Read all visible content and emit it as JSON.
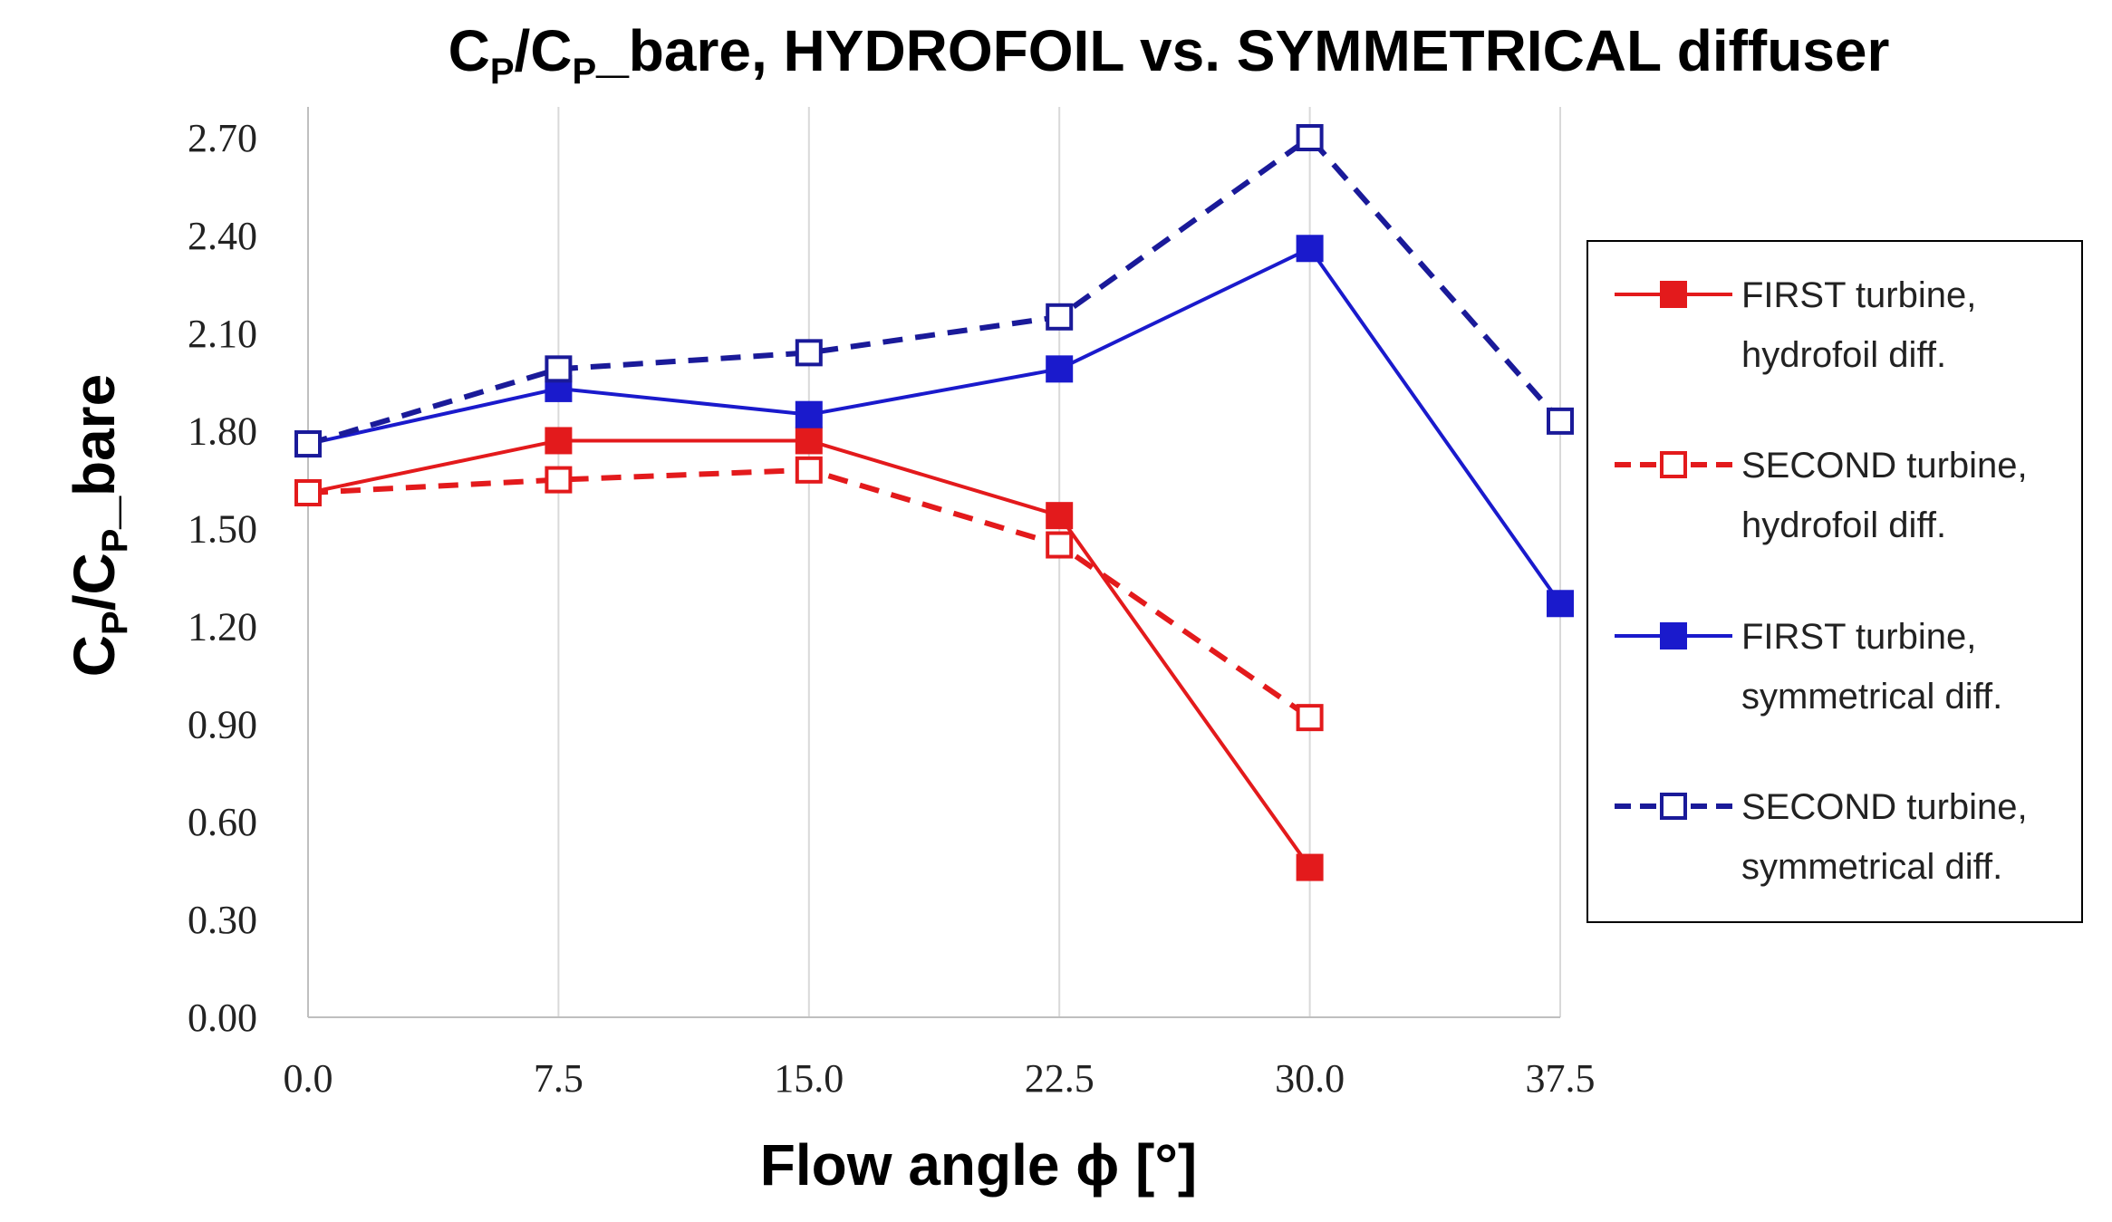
{
  "chart_data": {
    "type": "line",
    "title": "CP/CP_bare, HYDROFOIL vs. SYMMETRICAL diffuser",
    "title_parts": [
      "C",
      "P",
      "/C",
      "P",
      "_bare, HYDROFOIL vs. SYMMETRICAL diffuser"
    ],
    "xlabel": "Flow angle ϕ [°]",
    "ylabel": "CP/CP_bare",
    "ylabel_parts": [
      "C",
      "P",
      "/C",
      "P",
      "_bare"
    ],
    "x_ticks": [
      "0.0",
      "7.5",
      "15.0",
      "22.5",
      "30.0",
      "37.5"
    ],
    "y_ticks": [
      "0.00",
      "0.30",
      "0.60",
      "0.90",
      "1.20",
      "1.50",
      "1.80",
      "2.10",
      "2.40",
      "2.70"
    ],
    "xlim": [
      0,
      37.5
    ],
    "ylim": [
      0,
      2.7
    ],
    "grid": "vertical",
    "legend_position": "right",
    "series": [
      {
        "name_line1": "FIRST turbine,",
        "name_line2": "hydrofoil diff.",
        "color": "#e31a1c",
        "dashed": false,
        "filled": true,
        "x": [
          0,
          7.5,
          15,
          22.5,
          30
        ],
        "y": [
          1.61,
          1.77,
          1.77,
          1.54,
          0.46
        ]
      },
      {
        "name_line1": "SECOND turbine,",
        "name_line2": "hydrofoil diff.",
        "color": "#e31a1c",
        "dashed": true,
        "filled": false,
        "x": [
          0,
          7.5,
          15,
          22.5,
          30
        ],
        "y": [
          1.61,
          1.65,
          1.68,
          1.45,
          0.92
        ]
      },
      {
        "name_line1": "FIRST turbine,",
        "name_line2": "symmetrical diff.",
        "color": "#1a1acc",
        "dashed": false,
        "filled": true,
        "x": [
          0,
          7.5,
          15,
          22.5,
          30,
          37.5
        ],
        "y": [
          1.76,
          1.93,
          1.85,
          1.99,
          2.36,
          1.27
        ]
      },
      {
        "name_line1": "SECOND turbine,",
        "name_line2": "symmetrical diff.",
        "color": "#1a1a99",
        "dashed": true,
        "filled": false,
        "x": [
          0,
          7.5,
          15,
          22.5,
          30,
          37.5
        ],
        "y": [
          1.76,
          1.99,
          2.04,
          2.15,
          2.7,
          1.83
        ]
      }
    ]
  }
}
